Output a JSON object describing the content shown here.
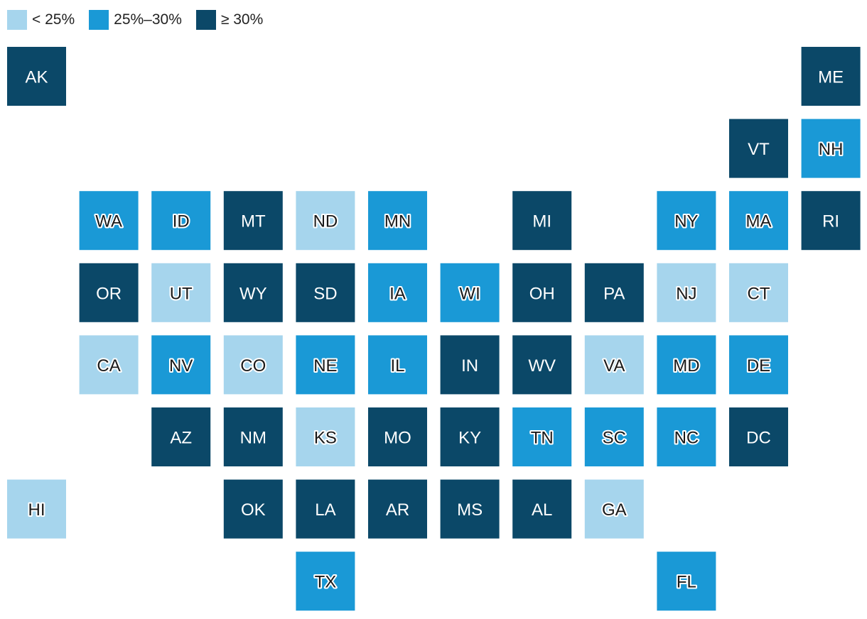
{
  "colors": {
    "low": "#a6d5ed",
    "mid": "#1a99d6",
    "high": "#0b4868"
  },
  "legend": [
    {
      "key": "low",
      "label": "< 25%"
    },
    {
      "key": "mid",
      "label": "25%–30%"
    },
    {
      "key": "high",
      "label": "≥ 30%"
    }
  ],
  "states": [
    {
      "code": "AK",
      "row": 0,
      "col": 0,
      "bin": "high"
    },
    {
      "code": "ME",
      "row": 0,
      "col": 11,
      "bin": "high"
    },
    {
      "code": "VT",
      "row": 1,
      "col": 10,
      "bin": "high"
    },
    {
      "code": "NH",
      "row": 1,
      "col": 11,
      "bin": "mid"
    },
    {
      "code": "WA",
      "row": 2,
      "col": 1,
      "bin": "mid"
    },
    {
      "code": "ID",
      "row": 2,
      "col": 2,
      "bin": "mid"
    },
    {
      "code": "MT",
      "row": 2,
      "col": 3,
      "bin": "high"
    },
    {
      "code": "ND",
      "row": 2,
      "col": 4,
      "bin": "low"
    },
    {
      "code": "MN",
      "row": 2,
      "col": 5,
      "bin": "mid"
    },
    {
      "code": "MI",
      "row": 2,
      "col": 7,
      "bin": "high"
    },
    {
      "code": "NY",
      "row": 2,
      "col": 9,
      "bin": "mid"
    },
    {
      "code": "MA",
      "row": 2,
      "col": 10,
      "bin": "mid"
    },
    {
      "code": "RI",
      "row": 2,
      "col": 11,
      "bin": "high"
    },
    {
      "code": "OR",
      "row": 3,
      "col": 1,
      "bin": "high"
    },
    {
      "code": "UT",
      "row": 3,
      "col": 2,
      "bin": "low"
    },
    {
      "code": "WY",
      "row": 3,
      "col": 3,
      "bin": "high"
    },
    {
      "code": "SD",
      "row": 3,
      "col": 4,
      "bin": "high"
    },
    {
      "code": "IA",
      "row": 3,
      "col": 5,
      "bin": "mid"
    },
    {
      "code": "WI",
      "row": 3,
      "col": 6,
      "bin": "mid"
    },
    {
      "code": "OH",
      "row": 3,
      "col": 7,
      "bin": "high"
    },
    {
      "code": "PA",
      "row": 3,
      "col": 8,
      "bin": "high"
    },
    {
      "code": "NJ",
      "row": 3,
      "col": 9,
      "bin": "low"
    },
    {
      "code": "CT",
      "row": 3,
      "col": 10,
      "bin": "low"
    },
    {
      "code": "CA",
      "row": 4,
      "col": 1,
      "bin": "low"
    },
    {
      "code": "NV",
      "row": 4,
      "col": 2,
      "bin": "mid"
    },
    {
      "code": "CO",
      "row": 4,
      "col": 3,
      "bin": "low"
    },
    {
      "code": "NE",
      "row": 4,
      "col": 4,
      "bin": "mid"
    },
    {
      "code": "IL",
      "row": 4,
      "col": 5,
      "bin": "mid"
    },
    {
      "code": "IN",
      "row": 4,
      "col": 6,
      "bin": "high"
    },
    {
      "code": "WV",
      "row": 4,
      "col": 7,
      "bin": "high"
    },
    {
      "code": "VA",
      "row": 4,
      "col": 8,
      "bin": "low"
    },
    {
      "code": "MD",
      "row": 4,
      "col": 9,
      "bin": "mid"
    },
    {
      "code": "DE",
      "row": 4,
      "col": 10,
      "bin": "mid"
    },
    {
      "code": "AZ",
      "row": 5,
      "col": 2,
      "bin": "high"
    },
    {
      "code": "NM",
      "row": 5,
      "col": 3,
      "bin": "high"
    },
    {
      "code": "KS",
      "row": 5,
      "col": 4,
      "bin": "low"
    },
    {
      "code": "MO",
      "row": 5,
      "col": 5,
      "bin": "high"
    },
    {
      "code": "KY",
      "row": 5,
      "col": 6,
      "bin": "high"
    },
    {
      "code": "TN",
      "row": 5,
      "col": 7,
      "bin": "mid"
    },
    {
      "code": "SC",
      "row": 5,
      "col": 8,
      "bin": "mid"
    },
    {
      "code": "NC",
      "row": 5,
      "col": 9,
      "bin": "mid"
    },
    {
      "code": "DC",
      "row": 5,
      "col": 10,
      "bin": "high"
    },
    {
      "code": "HI",
      "row": 6,
      "col": 0,
      "bin": "low"
    },
    {
      "code": "OK",
      "row": 6,
      "col": 3,
      "bin": "high"
    },
    {
      "code": "LA",
      "row": 6,
      "col": 4,
      "bin": "high"
    },
    {
      "code": "AR",
      "row": 6,
      "col": 5,
      "bin": "high"
    },
    {
      "code": "MS",
      "row": 6,
      "col": 6,
      "bin": "high"
    },
    {
      "code": "AL",
      "row": 6,
      "col": 7,
      "bin": "high"
    },
    {
      "code": "GA",
      "row": 6,
      "col": 8,
      "bin": "low"
    },
    {
      "code": "TX",
      "row": 7,
      "col": 4,
      "bin": "mid"
    },
    {
      "code": "FL",
      "row": 7,
      "col": 9,
      "bin": "mid"
    }
  ]
}
